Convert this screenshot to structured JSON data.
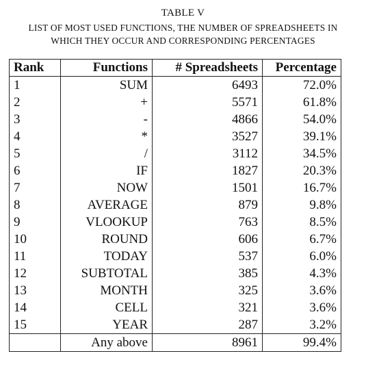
{
  "caption": {
    "title": "TABLE V",
    "line1": "LIST OF MOST USED FUNCTIONS, THE NUMBER OF SPREADSHEETS IN",
    "line2": "WHICH THEY OCCUR AND CORRESPONDING PERCENTAGES"
  },
  "table": {
    "headers": {
      "rank": "Rank",
      "functions": "Functions",
      "spreadsheets": "# Spreadsheets",
      "percentage": "Percentage"
    },
    "rows": [
      {
        "rank": "1",
        "function": "SUM",
        "spreadsheets": "6493",
        "percentage": "72.0%"
      },
      {
        "rank": "2",
        "function": "+",
        "spreadsheets": "5571",
        "percentage": "61.8%"
      },
      {
        "rank": "3",
        "function": "-",
        "spreadsheets": "4866",
        "percentage": "54.0%"
      },
      {
        "rank": "4",
        "function": "*",
        "spreadsheets": "3527",
        "percentage": "39.1%"
      },
      {
        "rank": "5",
        "function": "/",
        "spreadsheets": "3112",
        "percentage": "34.5%"
      },
      {
        "rank": "6",
        "function": "IF",
        "spreadsheets": "1827",
        "percentage": "20.3%"
      },
      {
        "rank": "7",
        "function": "NOW",
        "spreadsheets": "1501",
        "percentage": "16.7%"
      },
      {
        "rank": "8",
        "function": "AVERAGE",
        "spreadsheets": "879",
        "percentage": "9.8%"
      },
      {
        "rank": "9",
        "function": "VLOOKUP",
        "spreadsheets": "763",
        "percentage": "8.5%"
      },
      {
        "rank": "10",
        "function": "ROUND",
        "spreadsheets": "606",
        "percentage": "6.7%"
      },
      {
        "rank": "11",
        "function": "TODAY",
        "spreadsheets": "537",
        "percentage": "6.0%"
      },
      {
        "rank": "12",
        "function": "SUBTOTAL",
        "spreadsheets": "385",
        "percentage": "4.3%"
      },
      {
        "rank": "13",
        "function": "MONTH",
        "spreadsheets": "325",
        "percentage": "3.6%"
      },
      {
        "rank": "14",
        "function": "CELL",
        "spreadsheets": "321",
        "percentage": "3.6%"
      },
      {
        "rank": "15",
        "function": "YEAR",
        "spreadsheets": "287",
        "percentage": "3.2%"
      }
    ],
    "total": {
      "rank": "",
      "function": "Any above",
      "spreadsheets": "8961",
      "percentage": "99.4%"
    }
  }
}
